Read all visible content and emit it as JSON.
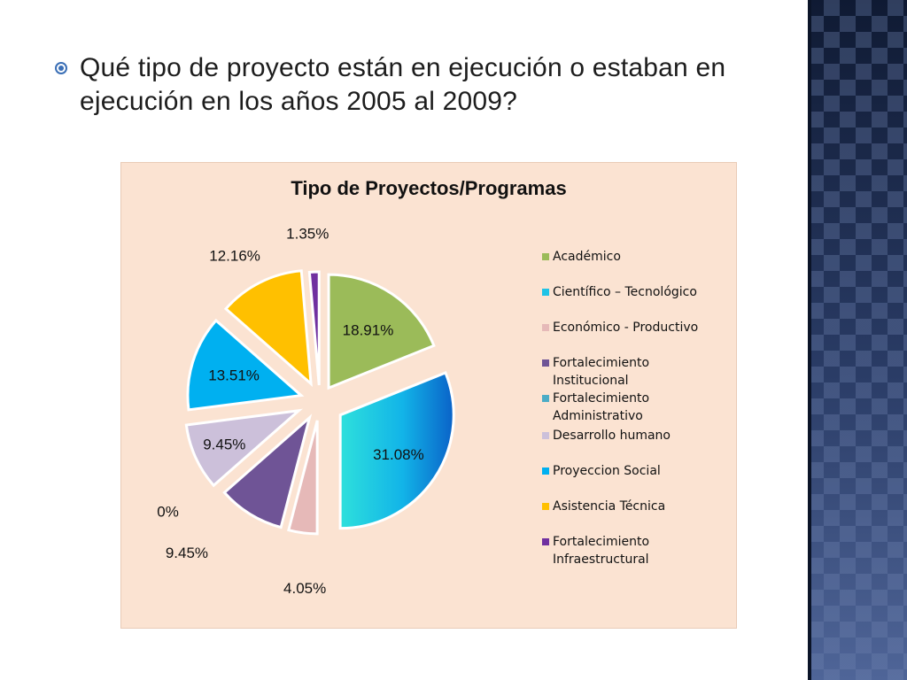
{
  "slide": {
    "question": "Qué tipo de proyecto están en ejecución o estaban en ejecución en los años 2005 al 2009?"
  },
  "colors": {
    "bullet": "#3b6fb6",
    "chart_background": "#fbe3d2"
  },
  "chart_data": {
    "type": "pie",
    "title": "Tipo de Proyectos/Programas",
    "categories": [
      "Académico",
      "Científico – Tecnológico",
      "Económico - Productivo",
      "Fortalecimiento Institucional",
      "Fortalecimiento Administrativo",
      "Desarrollo humano",
      "Proyeccion Social",
      "Asistencia Técnica",
      "Fortalecimiento Infraestructural"
    ],
    "values": [
      18.91,
      31.08,
      4.05,
      9.45,
      0,
      9.45,
      13.51,
      12.16,
      1.35
    ],
    "labels": [
      "18.91%",
      "31.08%",
      "4.05%",
      "9.45%",
      "0%",
      "9.45%",
      "13.51%",
      "12.16%",
      "1.35%"
    ],
    "colors": [
      "#9bbb59",
      "#1fc3e6",
      "#e6b9b8",
      "#6f5496",
      "#4bacc6",
      "#ccc0da",
      "#00b0f0",
      "#ffc000",
      "#7030a0"
    ],
    "legend_position": "right"
  }
}
